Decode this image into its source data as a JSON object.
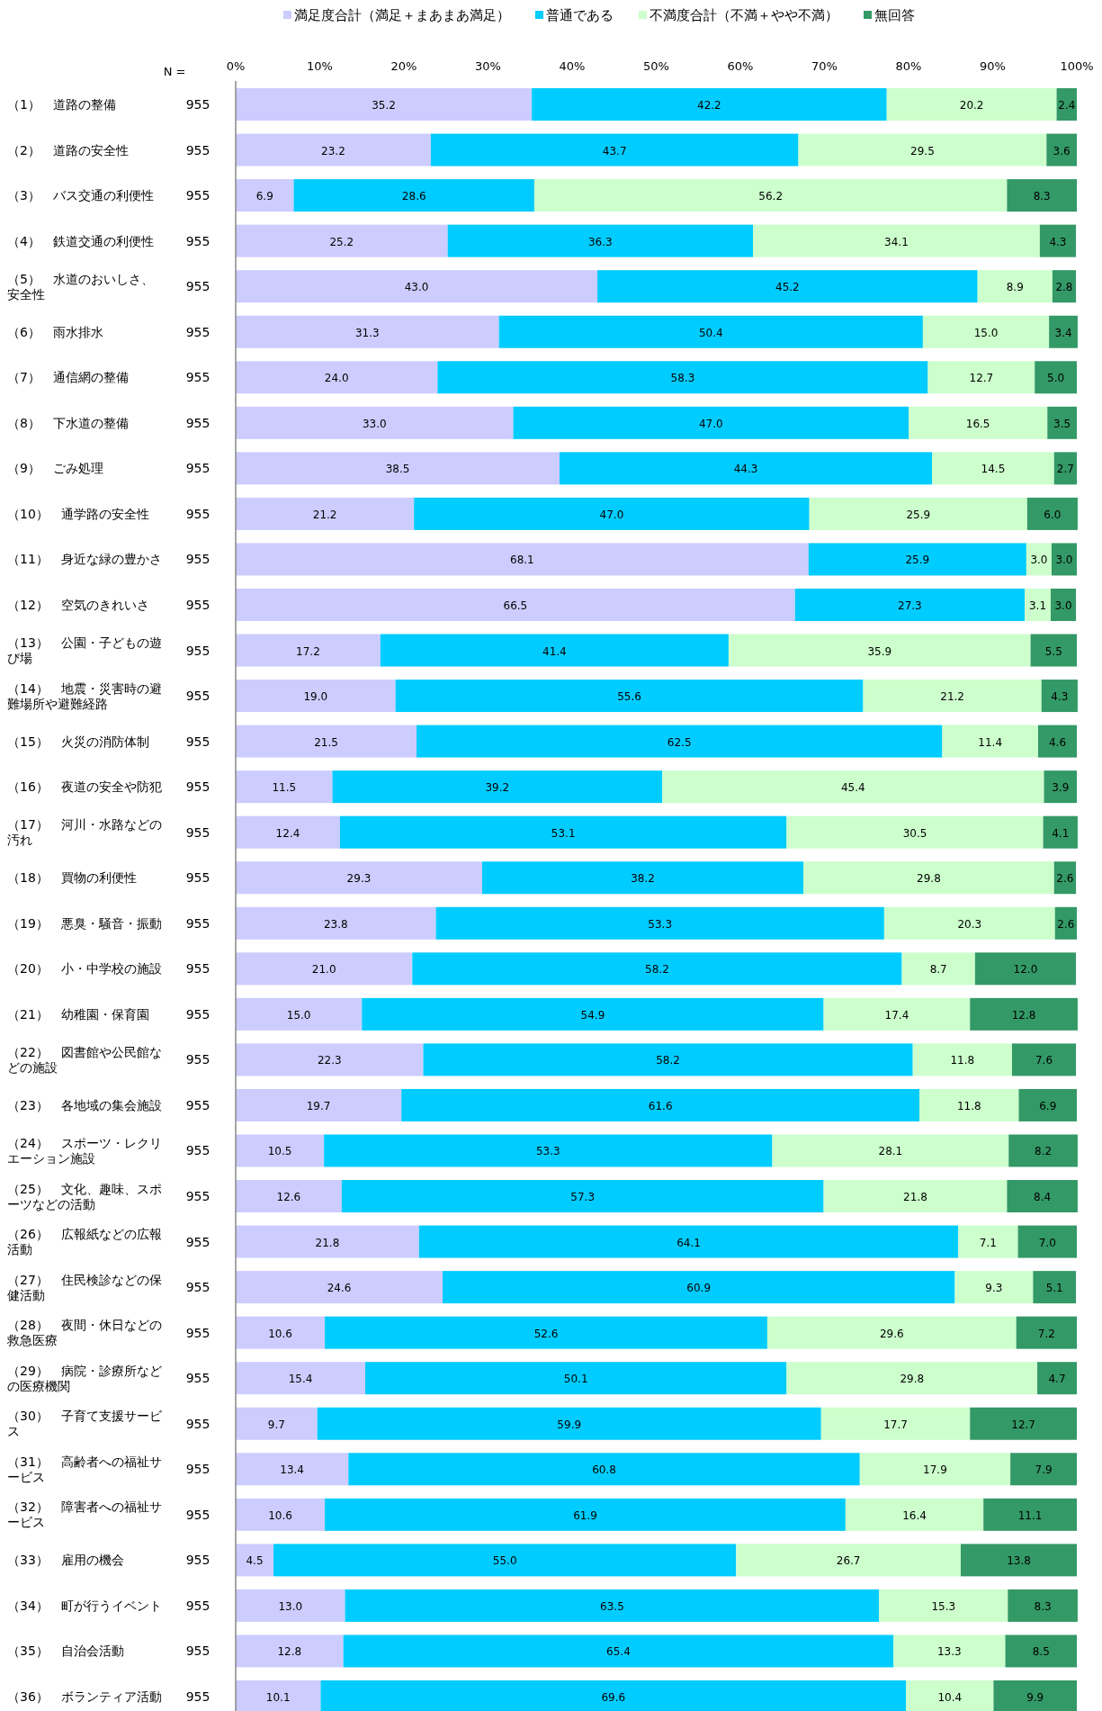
{
  "chart_data": {
    "type": "bar",
    "orientation": "horizontal",
    "stacked": true,
    "legend": "top",
    "grid": false,
    "xlim": [
      0,
      100
    ],
    "xticks": [
      {
        "value": 0,
        "label": "0%"
      },
      {
        "value": 10,
        "label": "10%"
      },
      {
        "value": 20,
        "label": "20%"
      },
      {
        "value": 30,
        "label": "30%"
      },
      {
        "value": 40,
        "label": "40%"
      },
      {
        "value": 50,
        "label": "50%"
      },
      {
        "value": 60,
        "label": "60%"
      },
      {
        "value": 70,
        "label": "70%"
      },
      {
        "value": 80,
        "label": "80%"
      },
      {
        "value": 90,
        "label": "90%"
      },
      {
        "value": 100,
        "label": "100%"
      }
    ],
    "categories": [
      "（1）　道路の整備",
      "（2）　道路の安全性",
      "（3）　バス交通の利便性",
      "（4）　鉄道交通の利便性",
      "（5）　水道のおいしさ、安全性",
      "（6）　雨水排水",
      "（7）　通信網の整備",
      "（8）　下水道の整備",
      "（9）　ごみ処理",
      "（10）　通学路の安全性",
      "（11）　身近な緑の豊かさ",
      "（12）　空気のきれいさ",
      "（13）　公園・子どもの遊び場",
      "（14）　地震・災害時の避難場所や避難経路",
      "（15）　火災の消防体制",
      "（16）　夜道の安全や防犯",
      "（17）　河川・水路などの汚れ",
      "（18）　買物の利便性",
      "（19）　悪臭・騒音・振動",
      "（20）　小・中学校の施設",
      "（21）　幼稚園・保育園",
      "（22）　図書館や公民館などの施設",
      "（23）　各地域の集会施設",
      "（24）　スポーツ・レクリエーション施設",
      "（25）　文化、趣味、スポーツなどの活動",
      "（26）　広報紙などの広報活動",
      "（27）　住民検診などの保健活動",
      "（28）　夜間・休日などの救急医療",
      "（29）　病院・診療所などの医療機関",
      "（30）　子育て支援サービス",
      "（31）　高齢者への福祉サービス",
      "（32）　障害者への福祉サービス",
      "（33）　雇用の機会",
      "（34）　町が行うイベント",
      "（35）　自治会活動",
      "（36）　ボランティア活動"
    ],
    "annotations": [
      "N =",
      "955",
      "955",
      "955",
      "955",
      "955",
      "955",
      "955",
      "955",
      "955",
      "955",
      "955",
      "955",
      "955",
      "955",
      "955",
      "955",
      "955",
      "955",
      "955",
      "955",
      "955",
      "955",
      "955",
      "955",
      "955",
      "955",
      "955",
      "955",
      "955",
      "955",
      "955",
      "955",
      "955",
      "955",
      "955",
      "955"
    ],
    "series": [
      {
        "name": "満足度合計（満足＋まあまあ満足）",
        "color": "#ccccff",
        "values": [
          35.2,
          23.2,
          6.9,
          25.2,
          43.0,
          31.3,
          24.0,
          33.0,
          38.5,
          21.2,
          68.1,
          66.5,
          17.2,
          19.0,
          21.5,
          11.5,
          12.4,
          29.3,
          23.8,
          21.0,
          15.0,
          22.3,
          19.7,
          10.5,
          12.6,
          21.8,
          24.6,
          10.6,
          15.4,
          9.7,
          13.4,
          10.6,
          4.5,
          13.0,
          12.8,
          10.1
        ],
        "value_labels": [
          "35.2",
          "23.2",
          "6.9",
          "25.2",
          "43.0",
          "31.3",
          "24.0",
          "33.0",
          "38.5",
          "21.2",
          "68.1",
          "66.5",
          "17.2",
          "19.0",
          "21.5",
          "11.5",
          "12.4",
          "29.3",
          "23.8",
          "21.0",
          "15.0",
          "22.3",
          "19.7",
          "10.5",
          "12.6",
          "21.8",
          "24.6",
          "10.6",
          "15.4",
          "9.7",
          "13.4",
          "10.6",
          "4.5",
          "13.0",
          "12.8",
          "10.1"
        ]
      },
      {
        "name": "普通である",
        "color": "#00ccff",
        "values": [
          42.2,
          43.7,
          28.6,
          36.3,
          45.2,
          50.4,
          58.3,
          47.0,
          44.3,
          47.0,
          25.9,
          27.3,
          41.4,
          55.6,
          62.5,
          39.2,
          53.1,
          38.2,
          53.3,
          58.2,
          54.9,
          58.2,
          61.6,
          53.3,
          57.3,
          64.1,
          60.9,
          52.6,
          50.1,
          59.9,
          60.8,
          61.9,
          55.0,
          63.5,
          65.4,
          69.6
        ],
        "value_labels": [
          "42.2",
          "43.7",
          "28.6",
          "36.3",
          "45.2",
          "50.4",
          "58.3",
          "47.0",
          "44.3",
          "47.0",
          "25.9",
          "27.3",
          "41.4",
          "55.6",
          "62.5",
          "39.2",
          "53.1",
          "38.2",
          "53.3",
          "58.2",
          "54.9",
          "58.2",
          "61.6",
          "53.3",
          "57.3",
          "64.1",
          "60.9",
          "52.6",
          "50.1",
          "59.9",
          "60.8",
          "61.9",
          "55.0",
          "63.5",
          "65.4",
          "69.6"
        ]
      },
      {
        "name": "不満度合計（不満＋やや不満）",
        "color": "#ccffcc",
        "values": [
          20.2,
          29.5,
          56.2,
          34.1,
          8.9,
          15.0,
          12.7,
          16.5,
          14.5,
          25.9,
          3.0,
          3.1,
          35.9,
          21.2,
          11.4,
          45.4,
          30.5,
          29.8,
          20.3,
          8.7,
          17.4,
          11.8,
          11.8,
          28.1,
          21.8,
          7.1,
          9.3,
          29.6,
          29.8,
          17.7,
          17.9,
          16.4,
          26.7,
          15.3,
          13.3,
          10.4
        ],
        "value_labels": [
          "20.2",
          "29.5",
          "56.2",
          "34.1",
          "8.9",
          "15.0",
          "12.7",
          "16.5",
          "14.5",
          "25.9",
          "3.0",
          "3.1",
          "35.9",
          "21.2",
          "11.4",
          "45.4",
          "30.5",
          "29.8",
          "20.3",
          "8.7",
          "17.4",
          "11.8",
          "11.8",
          "28.1",
          "21.8",
          "7.1",
          "9.3",
          "29.6",
          "29.8",
          "17.7",
          "17.9",
          "16.4",
          "26.7",
          "15.3",
          "13.3",
          "10.4"
        ]
      },
      {
        "name": "無回答",
        "color": "#339966",
        "values": [
          2.4,
          3.6,
          8.3,
          4.3,
          2.8,
          3.4,
          5.0,
          3.5,
          2.7,
          6.0,
          3.0,
          3.0,
          5.5,
          4.3,
          4.6,
          3.9,
          4.1,
          2.6,
          2.6,
          12.0,
          12.8,
          7.6,
          6.9,
          8.2,
          8.4,
          7.0,
          5.1,
          7.2,
          4.7,
          12.7,
          7.9,
          11.1,
          13.8,
          8.3,
          8.5,
          9.9
        ],
        "value_labels": [
          "2.4",
          "3.6",
          "8.3",
          "4.3",
          "2.8",
          "3.4",
          "5.0",
          "3.5",
          "2.7",
          "6.0",
          "3.0",
          "3.0",
          "5.5",
          "4.3",
          "4.6",
          "3.9",
          "4.1",
          "2.6",
          "2.6",
          "12.0",
          "12.8",
          "7.6",
          "6.9",
          "8.2",
          "8.4",
          "7.0",
          "5.1",
          "7.2",
          "4.7",
          "12.7",
          "7.9",
          "11.1",
          "13.8",
          "8.3",
          "8.5",
          "9.9"
        ]
      }
    ]
  }
}
